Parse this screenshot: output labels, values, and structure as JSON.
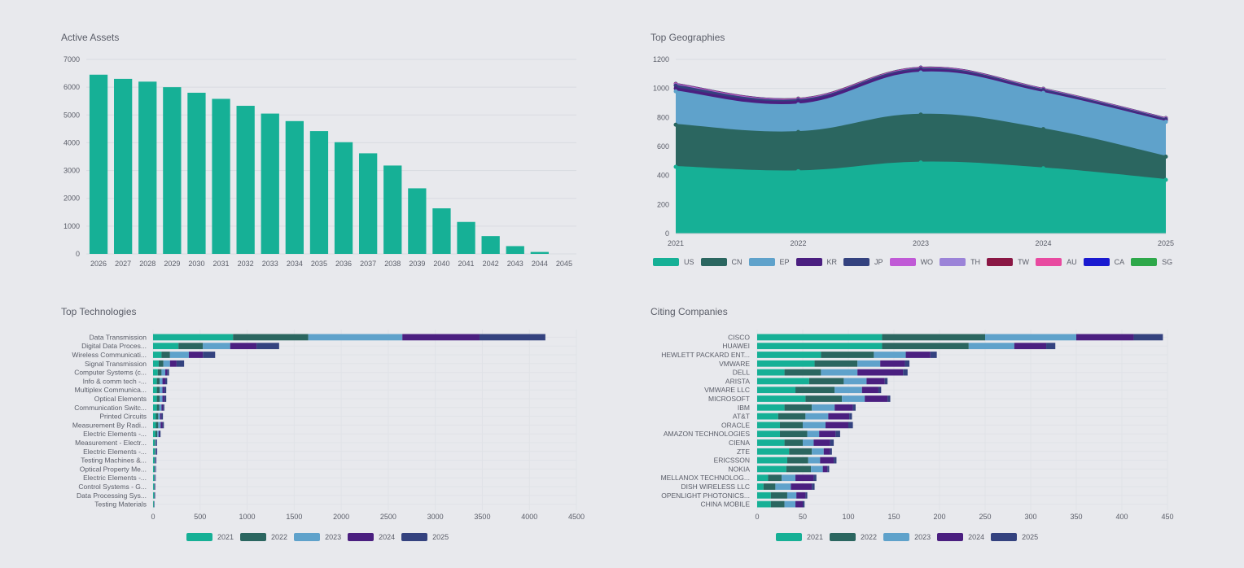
{
  "colors": {
    "2021": "#16b096",
    "2022": "#2b6660",
    "2023": "#5fa2cb",
    "2024": "#4b1f80",
    "2025": "#34427f",
    "US": "#16b096",
    "CN": "#2b6660",
    "EP": "#5fa2cb",
    "KR": "#4b1f80",
    "JP": "#34427f",
    "WO": "#c05ad6",
    "TH": "#9b83d8",
    "TW": "#8a1744",
    "AU": "#e84aa0",
    "CA": "#1a1ad0",
    "SG": "#2ea84a"
  },
  "charts": {
    "active_assets": {
      "title": "Active Assets",
      "chart_data": {
        "type": "bar",
        "categories": [
          "2026",
          "2027",
          "2028",
          "2029",
          "2030",
          "2031",
          "2032",
          "2033",
          "2034",
          "2035",
          "2036",
          "2037",
          "2038",
          "2039",
          "2040",
          "2041",
          "2042",
          "2043",
          "2044",
          "2045"
        ],
        "values": [
          6450,
          6300,
          6200,
          6000,
          5800,
          5580,
          5330,
          5050,
          4780,
          4420,
          4020,
          3620,
          3180,
          2360,
          1640,
          1150,
          640,
          280,
          70,
          0
        ],
        "ylim": [
          0,
          7000
        ],
        "yticks": [
          0,
          1000,
          2000,
          3000,
          4000,
          5000,
          6000,
          7000
        ],
        "color": "#16b096"
      }
    },
    "top_geographies": {
      "title": "Top Geographies",
      "chart_data": {
        "type": "area",
        "x": [
          "2021",
          "2022",
          "2023",
          "2024",
          "2025"
        ],
        "ylim": [
          0,
          1200
        ],
        "yticks": [
          0,
          200,
          400,
          600,
          800,
          1000,
          1200
        ],
        "series": [
          {
            "name": "US",
            "values": [
              460,
              430,
              490,
              450,
              370
            ]
          },
          {
            "name": "CN",
            "values": [
              290,
              270,
              330,
              270,
              160
            ]
          },
          {
            "name": "EP",
            "values": [
              230,
              190,
              290,
              250,
              240
            ]
          },
          {
            "name": "KR",
            "values": [
              20,
              20,
              15,
              10,
              10
            ]
          },
          {
            "name": "JP",
            "values": [
              20,
              10,
              10,
              10,
              8
            ]
          },
          {
            "name": "WO",
            "values": [
              3,
              3,
              2,
              2,
              2
            ]
          },
          {
            "name": "TH",
            "values": [
              3,
              2,
              2,
              2,
              2
            ]
          },
          {
            "name": "TW",
            "values": [
              2,
              2,
              2,
              1,
              1
            ]
          },
          {
            "name": "AU",
            "values": [
              2,
              1,
              1,
              1,
              1
            ]
          },
          {
            "name": "CA",
            "values": [
              1,
              1,
              1,
              1,
              1
            ]
          },
          {
            "name": "SG",
            "values": [
              1,
              1,
              1,
              1,
              1
            ]
          }
        ]
      }
    },
    "top_technologies": {
      "title": "Top Technologies",
      "chart_data": {
        "type": "bar",
        "orientation": "horizontal",
        "stacked": true,
        "categories": [
          "Data Transmission",
          "Digital Data Proces...",
          "Wireless Communicati...",
          "Signal Transmission",
          "Computer Systems (c...",
          "Info & comm tech -...",
          "Multiplex Communica...",
          "Optical Elements",
          "Communication Switc...",
          "Printed Circuits",
          "Measurement By Radi...",
          "Electric Elements -...",
          "Measurement - Electr...",
          "Electric Elements -...",
          "Testing Machines &...",
          "Optical Property Me...",
          "Electric Elements -...",
          "Control Systems - G...",
          "Data Processing Sys...",
          "Testing Materials"
        ],
        "series": [
          {
            "name": "2021",
            "values": [
              850,
              270,
              90,
              60,
              50,
              40,
              40,
              40,
              40,
              30,
              30,
              25,
              15,
              15,
              12,
              10,
              10,
              8,
              8,
              6
            ]
          },
          {
            "name": "2022",
            "values": [
              800,
              260,
              90,
              50,
              40,
              30,
              30,
              30,
              25,
              25,
              25,
              20,
              10,
              10,
              8,
              8,
              6,
              6,
              5,
              4
            ]
          },
          {
            "name": "2023",
            "values": [
              1000,
              290,
              200,
              70,
              40,
              30,
              30,
              30,
              25,
              20,
              25,
              15,
              8,
              8,
              6,
              6,
              5,
              4,
              4,
              3
            ]
          },
          {
            "name": "2024",
            "values": [
              820,
              280,
              150,
              70,
              20,
              30,
              20,
              20,
              15,
              15,
              20,
              10,
              5,
              6,
              5,
              4,
              4,
              3,
              3,
              2
            ]
          },
          {
            "name": "2025",
            "values": [
              700,
              240,
              130,
              80,
              20,
              20,
              20,
              20,
              15,
              15,
              15,
              10,
              5,
              5,
              4,
              4,
              3,
              3,
              3,
              2
            ]
          }
        ],
        "xlim": [
          0,
          4500
        ],
        "xticks": [
          0,
          500,
          1000,
          1500,
          2000,
          2500,
          3000,
          3500,
          4000,
          4500
        ]
      }
    },
    "citing_companies": {
      "title": "Citing Companies",
      "chart_data": {
        "type": "bar",
        "orientation": "horizontal",
        "stacked": true,
        "categories": [
          "CISCO",
          "HUAWEI",
          "HEWLETT PACKARD ENT...",
          "VMWARE",
          "DELL",
          "ARISTA",
          "VMWARE LLC",
          "MICROSOFT",
          "IBM",
          "AT&T",
          "ORACLE",
          "AMAZON TECHNOLOGIES",
          "CIENA",
          "ZTE",
          "ERICSSON",
          "NOKIA",
          "MELLANOX TECHNOLOG...",
          "DISH WIRELESS LLC",
          "OPENLIGHT PHOTONICS...",
          "CHINA MOBILE"
        ],
        "series": [
          {
            "name": "2021",
            "values": [
              137,
              137,
              70,
              63,
              30,
              57,
              42,
              53,
              30,
              23,
              25,
              25,
              30,
              35,
              33,
              32,
              12,
              7,
              15,
              15
            ]
          },
          {
            "name": "2022",
            "values": [
              113,
              95,
              58,
              47,
              40,
              38,
              43,
              40,
              30,
              30,
              25,
              30,
              20,
              25,
              23,
              27,
              15,
              13,
              18,
              15
            ]
          },
          {
            "name": "2023",
            "values": [
              100,
              50,
              35,
              25,
              40,
              25,
              30,
              25,
              25,
              25,
              25,
              13,
              12,
              13,
              13,
              13,
              15,
              17,
              10,
              12
            ]
          },
          {
            "name": "2024",
            "values": [
              63,
              35,
              27,
              27,
              50,
              20,
              18,
              25,
              20,
              23,
              25,
              18,
              18,
              7,
              15,
              5,
              20,
              23,
              10,
              8
            ]
          },
          {
            "name": "2025",
            "values": [
              32,
              10,
              7,
              5,
              5,
              3,
              3,
              3,
              3,
              3,
              5,
              5,
              4,
              2,
              3,
              2,
              3,
              3,
              2,
              2
            ]
          }
        ],
        "xlim": [
          0,
          450
        ],
        "xticks": [
          0,
          50,
          100,
          150,
          200,
          250,
          300,
          350,
          400,
          450
        ]
      }
    }
  },
  "legends": {
    "geo": [
      "US",
      "CN",
      "EP",
      "KR",
      "JP",
      "WO",
      "TH",
      "TW",
      "AU",
      "CA",
      "SG"
    ],
    "tech": [
      "2021",
      "2022",
      "2023",
      "2024",
      "2025"
    ],
    "companies": [
      "2021",
      "2022",
      "2023",
      "2024",
      "2025"
    ]
  }
}
